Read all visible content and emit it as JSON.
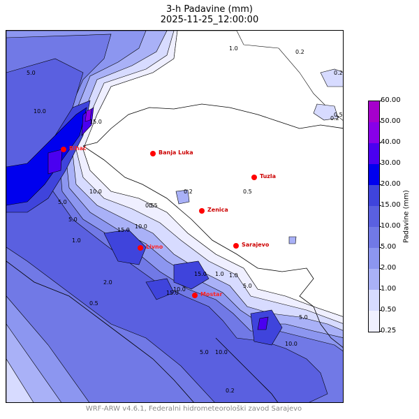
{
  "title": "3-h Padavine (mm)",
  "subtitle": "2025-11-25_12:00:00",
  "footer": "WRF-ARW v4.6.1, Federalni hidrometeorološki zavod Sarajevo",
  "colorbar": {
    "label": "Padavine (mm)",
    "levels": [
      "0.25",
      "0.50",
      "1.00",
      "2.00",
      "5.00",
      "10.00",
      "15.00",
      "20.00",
      "30.00",
      "40.00",
      "50.00",
      "60.00"
    ],
    "colors": [
      "#efefff",
      "#d7dbff",
      "#a9b1f7",
      "#8c96f0",
      "#7179e6",
      "#5a60e0",
      "#3f44dc",
      "#0000ee",
      "#4a00f0",
      "#8800e8",
      "#a600cc"
    ]
  },
  "cities": [
    {
      "name": "Bihać",
      "color": "#ff0000"
    },
    {
      "name": "Banja Luka",
      "color": "#ff0000"
    },
    {
      "name": "Tuzla",
      "color": "#ff0000"
    },
    {
      "name": "Zenica",
      "color": "#ff0000"
    },
    {
      "name": "Sarajevo",
      "color": "#ff0000"
    },
    {
      "name": "Livno",
      "color": "#ff0000"
    },
    {
      "name": "Mostar",
      "color": "#ff0000"
    }
  ],
  "contour_labels": [
    "5.0",
    "10.0",
    "15.0",
    "0.5",
    "1.0",
    "0.2",
    "2.0",
    "0.2",
    "1.0",
    "5.0",
    "10.0",
    "15.0",
    "10.0",
    "5.0",
    "15.0",
    "1.0",
    "5.0",
    "10.0",
    "0.5",
    "0.2",
    "10.0",
    "5.0",
    "0.5",
    "0.5",
    "5.0",
    "15.0",
    "10.0",
    "1.0",
    "0.2",
    "0.5",
    "0.2"
  ]
}
